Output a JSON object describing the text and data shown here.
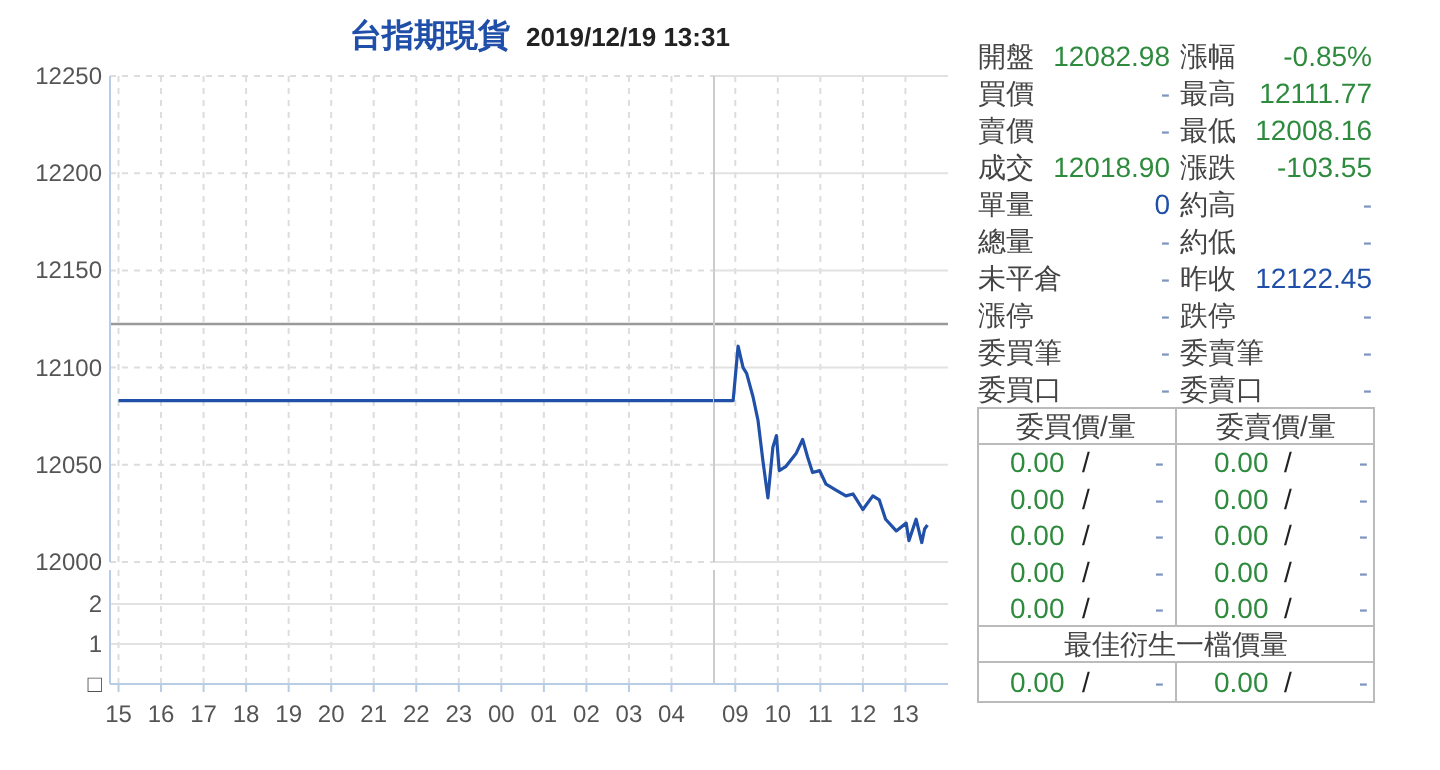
{
  "chart_data": [
    {
      "type": "line",
      "title": "台指期現貨",
      "subtitle": "2019/12/19 13:31",
      "xlim": [
        "2019-12-18T14:48",
        "2019-12-19T05:00"
      ],
      "ylim": [
        12000,
        12250
      ],
      "xticks": [
        {
          "value": "2019-12-18T15:00",
          "label": null
        },
        {
          "value": "2019-12-18T16:00",
          "label": null
        },
        {
          "value": "2019-12-18T17:00",
          "label": null
        },
        {
          "value": "2019-12-18T18:00",
          "label": null
        },
        {
          "value": "2019-12-18T19:00",
          "label": null
        },
        {
          "value": "2019-12-18T20:00",
          "label": null
        },
        {
          "value": "2019-12-18T21:00",
          "label": null
        },
        {
          "value": "2019-12-18T22:00",
          "label": null
        },
        {
          "value": "2019-12-18T23:00",
          "label": null
        },
        {
          "value": "2019-12-19T00:00",
          "label": null
        },
        {
          "value": "2019-12-19T01:00",
          "label": null
        },
        {
          "value": "2019-12-19T02:00",
          "label": null
        },
        {
          "value": "2019-12-19T03:00",
          "label": null
        },
        {
          "value": "2019-12-19T04:00",
          "label": null
        }
      ],
      "yticks": [
        12000,
        12050,
        12100,
        12150,
        12200,
        12250
      ],
      "grid": true,
      "tick_labels": "y",
      "ref_lines": [
        {
          "axis": "y",
          "value": 12122.45,
          "color": "#999999"
        }
      ],
      "series": [
        {
          "color": "#2150a8",
          "x": [
            "2019-12-18T15:00",
            "2019-12-19T05:00"
          ],
          "values": [
            12083,
            12083
          ]
        }
      ]
    },
    {
      "type": "line",
      "xlim": [
        "2019-12-19T08:30",
        "2019-12-19T14:00"
      ],
      "ylim": [
        12000,
        12250
      ],
      "xticks": [
        {
          "value": "2019-12-19T09:00",
          "label": null
        },
        {
          "value": "2019-12-19T10:00",
          "label": null
        },
        {
          "value": "2019-12-19T11:00",
          "label": null
        },
        {
          "value": "2019-12-19T12:00",
          "label": null
        },
        {
          "value": "2019-12-19T13:00",
          "label": null
        }
      ],
      "yticks": [
        12000,
        12050,
        12100,
        12150,
        12200,
        12250
      ],
      "grid": true,
      "tick_labels": false,
      "ref_lines": [
        {
          "axis": "y",
          "value": 12122.45,
          "color": "#999999"
        }
      ],
      "series": [
        {
          "color": "#2150a8",
          "x": [
            "2019-12-19T08:30",
            "2019-12-19T08:57",
            "2019-12-19T09:04",
            "2019-12-19T09:11",
            "2019-12-19T09:16",
            "2019-12-19T09:25",
            "2019-12-19T09:32",
            "2019-12-19T09:39",
            "2019-12-19T09:46",
            "2019-12-19T09:53",
            "2019-12-19T09:58",
            "2019-12-19T10:02",
            "2019-12-19T10:11",
            "2019-12-19T10:26",
            "2019-12-19T10:35",
            "2019-12-19T10:42",
            "2019-12-19T10:49",
            "2019-12-19T10:59",
            "2019-12-19T11:08",
            "2019-12-19T11:22",
            "2019-12-19T11:36",
            "2019-12-19T11:46",
            "2019-12-19T12:00",
            "2019-12-19T12:14",
            "2019-12-19T12:23",
            "2019-12-19T12:32",
            "2019-12-19T12:47",
            "2019-12-19T13:01",
            "2019-12-19T13:05",
            "2019-12-19T13:15",
            "2019-12-19T13:23",
            "2019-12-19T13:27",
            "2019-12-19T13:31"
          ],
          "values": [
            12083,
            12083,
            12111,
            12100,
            12097,
            12085,
            12073,
            12052,
            12033,
            12059,
            12065,
            12047,
            12049,
            12056,
            12063,
            12054,
            12046,
            12047,
            12040,
            12037,
            12034,
            12035,
            12027,
            12034,
            12032,
            12022,
            12016,
            12020,
            12011,
            12022,
            12010,
            12017,
            12019
          ]
        }
      ]
    },
    {
      "type": "bar",
      "xlim": [
        "2019-12-18T14:48",
        "2019-12-19T05:00"
      ],
      "ylim": [
        0,
        2.85
      ],
      "xticks": [
        {
          "value": "2019-12-18T15:00",
          "label": "15"
        },
        {
          "value": "2019-12-18T16:00",
          "label": "16"
        },
        {
          "value": "2019-12-18T17:00",
          "label": "17"
        },
        {
          "value": "2019-12-18T18:00",
          "label": "18"
        },
        {
          "value": "2019-12-18T19:00",
          "label": "19"
        },
        {
          "value": "2019-12-18T20:00",
          "label": "20"
        },
        {
          "value": "2019-12-18T21:00",
          "label": "21"
        },
        {
          "value": "2019-12-18T22:00",
          "label": "22"
        },
        {
          "value": "2019-12-18T23:00",
          "label": "23"
        },
        {
          "value": "2019-12-19T00:00",
          "label": "00"
        },
        {
          "value": "2019-12-19T01:00",
          "label": "01"
        },
        {
          "value": "2019-12-19T02:00",
          "label": "02"
        },
        {
          "value": "2019-12-19T03:00",
          "label": "03"
        },
        {
          "value": "2019-12-19T04:00",
          "label": "04"
        }
      ],
      "yticks": [
        2,
        1,
        {
          "value": 0,
          "label": "□"
        }
      ],
      "grid": true
    },
    {
      "type": "bar",
      "xlim": [
        "2019-12-19T08:30",
        "2019-12-19T14:00"
      ],
      "ylim": [
        0,
        2.85
      ],
      "xticks": [
        {
          "value": "2019-12-19T09:00",
          "label": "09"
        },
        {
          "value": "2019-12-19T10:00",
          "label": "10"
        },
        {
          "value": "2019-12-19T11:00",
          "label": "11"
        },
        {
          "value": "2019-12-19T12:00",
          "label": "12"
        },
        {
          "value": "2019-12-19T13:00",
          "label": "13"
        }
      ],
      "yticks": [
        2,
        1,
        0
      ],
      "grid": true,
      "tick_labels": "x"
    },
    {
      "type": "other",
      "annotations": [
        "開盤",
        "12082.98",
        "漲幅",
        "-0.85%",
        "買價",
        "-",
        "最高",
        "12111.77",
        "賣價",
        "-",
        "最低",
        "12008.16",
        "成交",
        "12018.90",
        "漲跌",
        "-103.55",
        "單量",
        "0",
        "約高",
        "-",
        "總量",
        "-",
        "約低",
        "-",
        "未平倉",
        "-",
        "昨收",
        "12122.45",
        "漲停",
        "-",
        "跌停",
        "-",
        "委買筆",
        "-",
        "委賣筆",
        "-",
        "委買口",
        "-",
        "委賣口",
        "-",
        "委買價/量",
        "委賣價/量",
        "0.00",
        "/",
        "-",
        "0.00",
        "/",
        "-",
        "0.00",
        "/",
        "-",
        "0.00",
        "/",
        "-",
        "0.00",
        "/",
        "-",
        "0.00",
        "/",
        "-",
        "0.00",
        "/",
        "-",
        "0.00",
        "/",
        "-",
        "0.00",
        "/",
        "-",
        "0.00",
        "/",
        "-",
        "最佳衍生一檔價量",
        "0.00",
        "/",
        "-",
        "0.00",
        "/",
        "-"
      ],
      "colors": [
        "#444444",
        "#2e8b3e",
        "#444444",
        "#2e8b3e",
        "#444444",
        "#7f95c0",
        "#444444",
        "#2e8b3e",
        "#444444",
        "#7f95c0",
        "#444444",
        "#2e8b3e",
        "#444444",
        "#2e8b3e",
        "#444444",
        "#2e8b3e",
        "#444444",
        "#1f4fa8",
        "#444444",
        "#7f95c0",
        "#444444",
        "#7f95c0",
        "#444444",
        "#7f95c0",
        "#444444",
        "#7f95c0",
        "#444444",
        "#1f4fa8",
        "#444444",
        "#7f95c0",
        "#444444",
        "#7f95c0",
        "#444444",
        "#7f95c0",
        "#444444",
        "#7f95c0",
        "#444444",
        "#7f95c0",
        "#444444",
        "#7f95c0",
        "#444444",
        "#444444",
        "#2e8b3e",
        "#222222",
        "#7f95c0",
        "#2e8b3e",
        "#222222",
        "#7f95c0",
        "#2e8b3e",
        "#222222",
        "#7f95c0",
        "#2e8b3e",
        "#222222",
        "#7f95c0",
        "#2e8b3e",
        "#222222",
        "#7f95c0",
        "#2e8b3e",
        "#222222",
        "#7f95c0",
        "#2e8b3e",
        "#222222",
        "#7f95c0",
        "#2e8b3e",
        "#222222",
        "#7f95c0",
        "#2e8b3e",
        "#222222",
        "#7f95c0",
        "#2e8b3e",
        "#222222",
        "#7f95c0",
        "#444444",
        "#2e8b3e",
        "#222222",
        "#7f95c0",
        "#2e8b3e",
        "#222222",
        "#7f95c0"
      ]
    }
  ]
}
